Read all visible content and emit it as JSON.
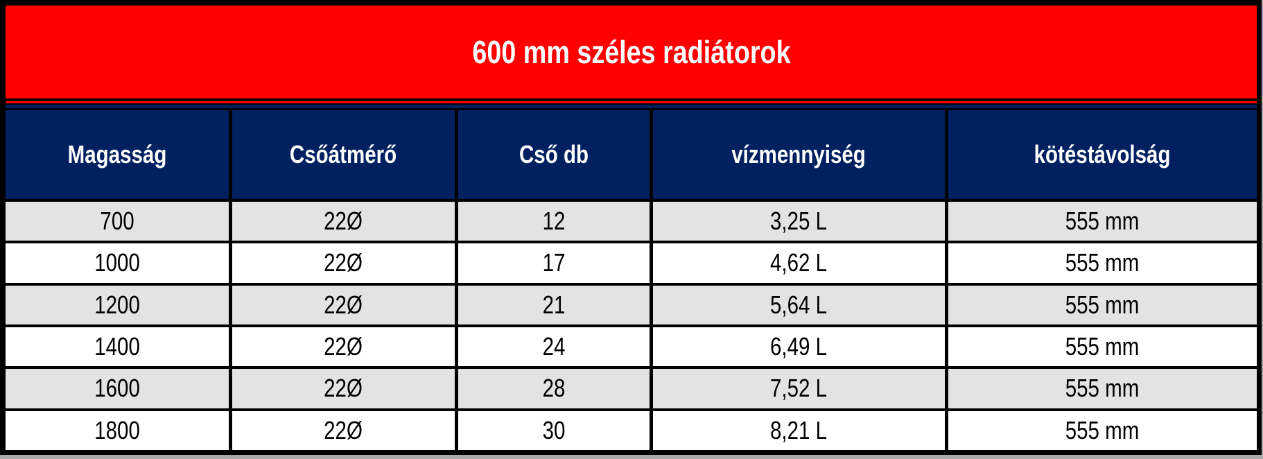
{
  "title": "600 mm széles radiátorok",
  "colors": {
    "banner": "#fe0000",
    "header_bg": "#002060",
    "row_alt": "#e3e3e3",
    "row_white": "#ffffff",
    "border": "#000000",
    "text_light": "#ffffff",
    "text_dark": "#000000",
    "page_edge": "#a9a9a9"
  },
  "chart_data": {
    "type": "table",
    "title": "600 mm széles radiátorok",
    "columns": [
      "Magasság",
      "Csőátmérő",
      "Cső db",
      "vízmennyiség",
      "kötéstávolság"
    ],
    "rows": [
      [
        "700",
        "22Ø",
        "12",
        "3,25 L",
        "555 mm"
      ],
      [
        "1000",
        "22Ø",
        "17",
        "4,62 L",
        "555 mm"
      ],
      [
        "1200",
        "22Ø",
        "21",
        "5,64 L",
        "555 mm"
      ],
      [
        "1400",
        "22Ø",
        "24",
        "6,49 L",
        "555 mm"
      ],
      [
        "1600",
        "22Ø",
        "28",
        "7,52 L",
        "555 mm"
      ],
      [
        "1800",
        "22Ø",
        "30",
        "8,21 L",
        "555 mm"
      ]
    ],
    "layout": {
      "legend": false,
      "grid": true,
      "striped_rows": true,
      "header_position": "top"
    }
  }
}
